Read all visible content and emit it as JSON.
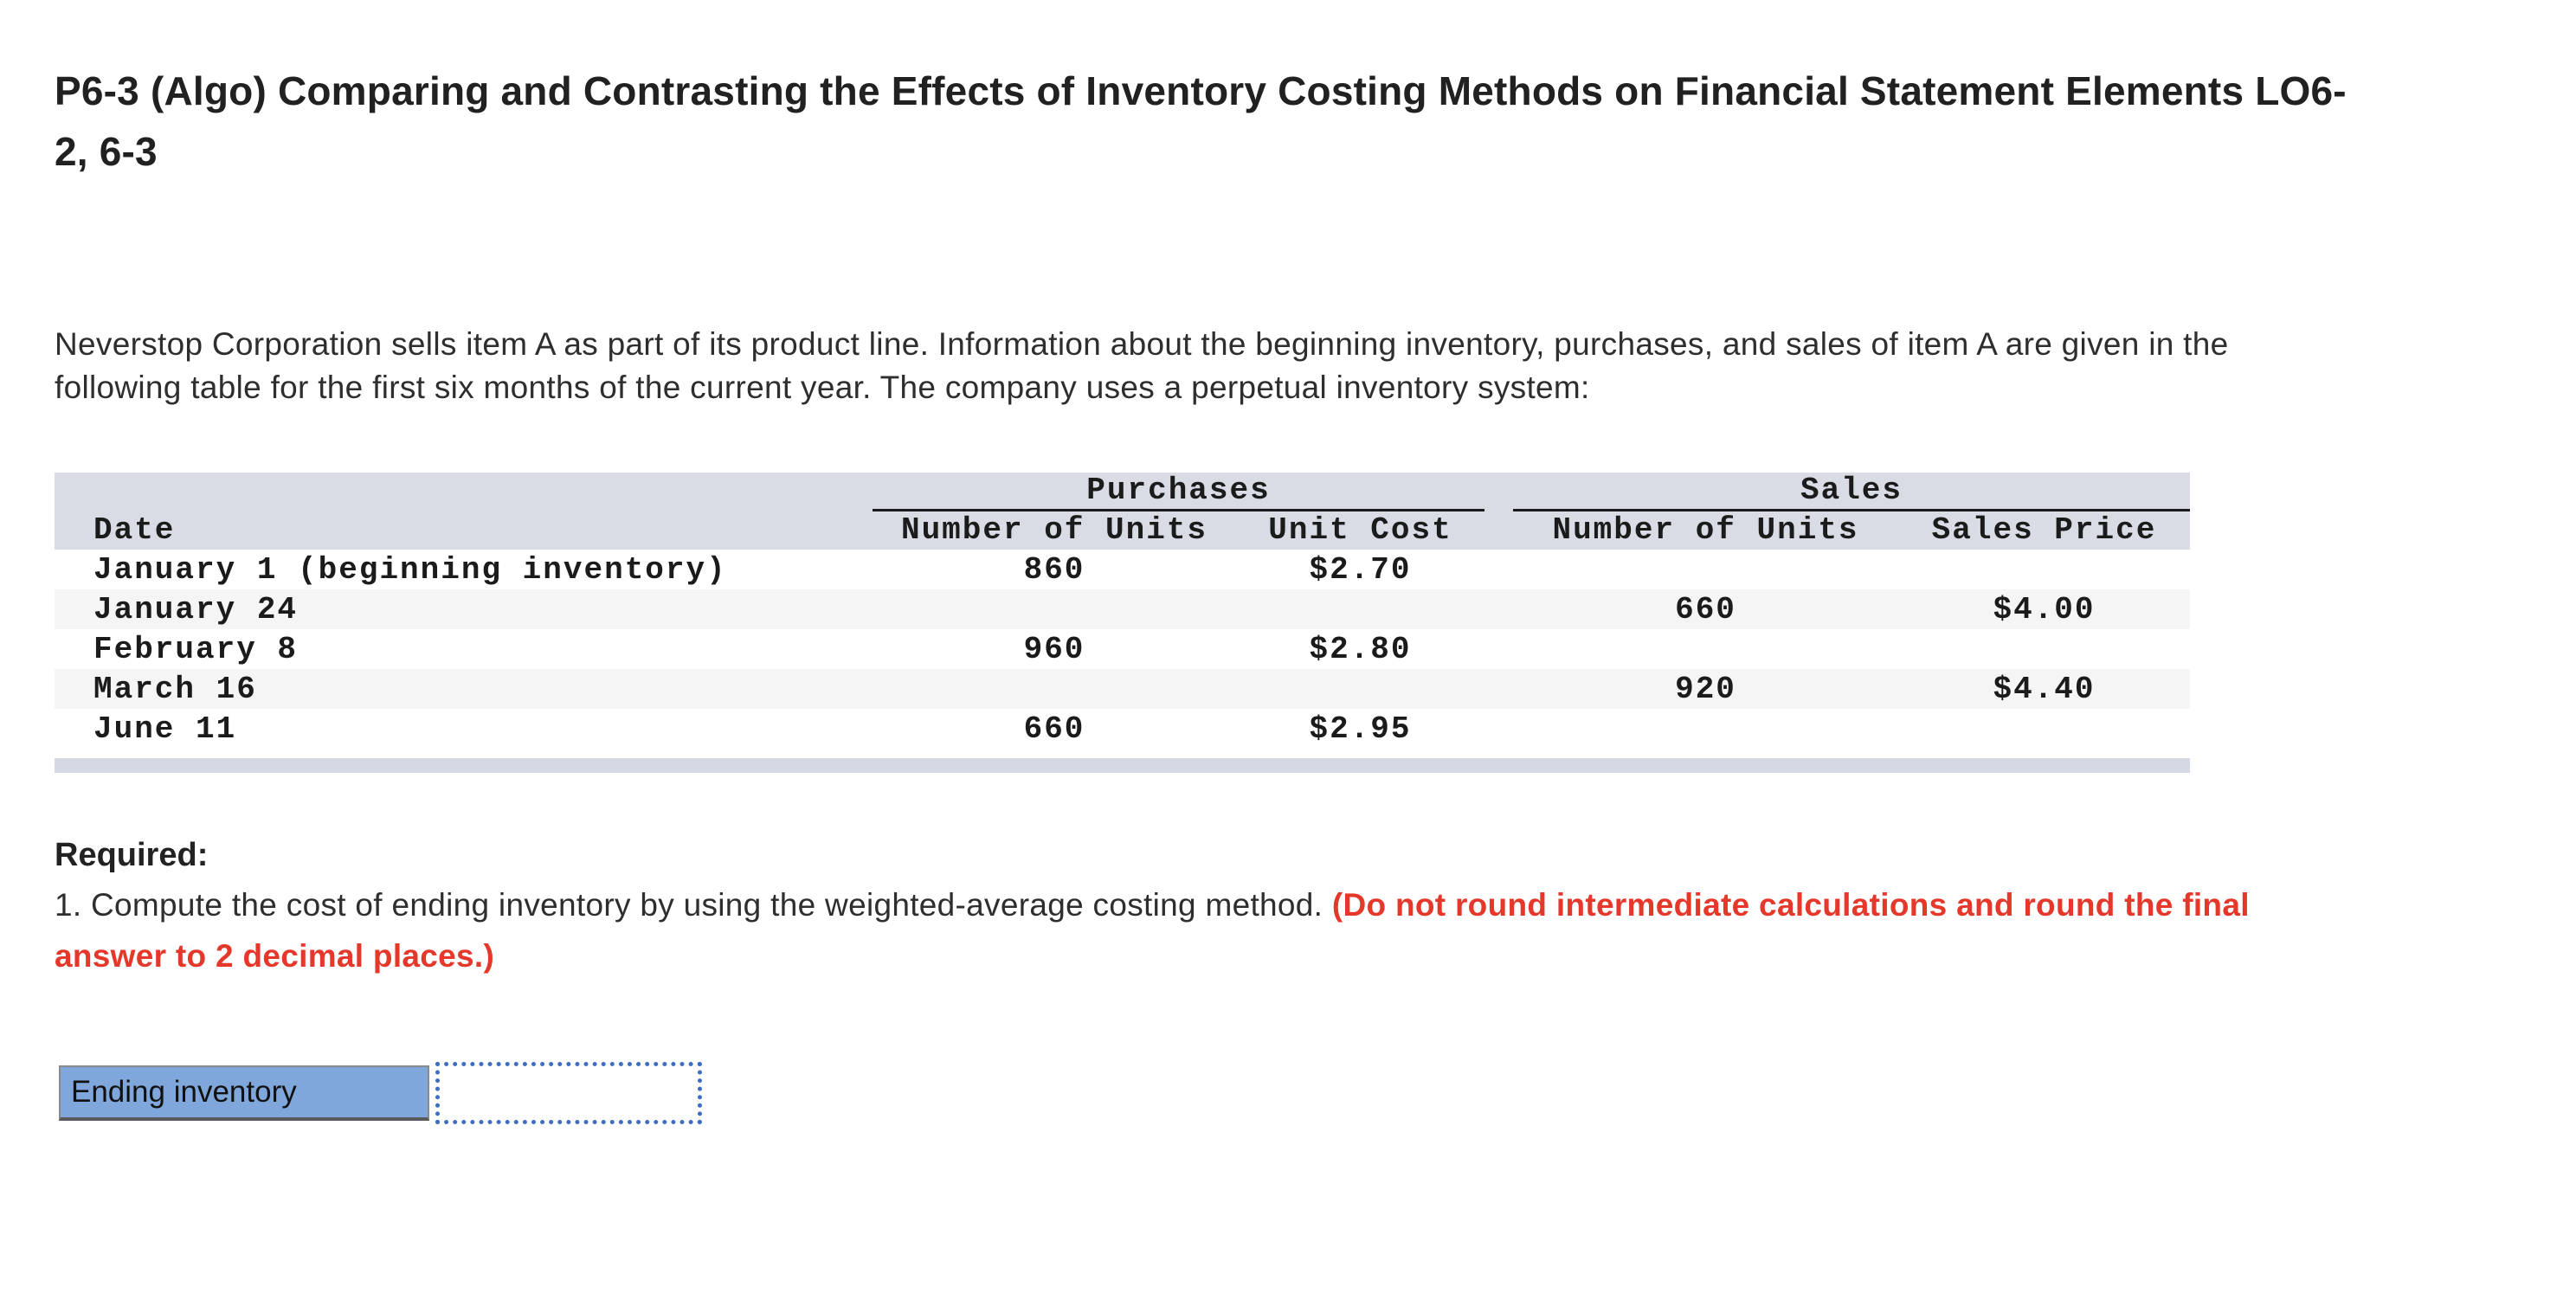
{
  "page": {
    "title": "P6-3 (Algo) Comparing and Contrasting the Effects of Inventory Costing Methods on Financial Statement Elements LO6-2, 6-3",
    "intro": "Neverstop Corporation sells item A as part of its product line. Information about the beginning inventory, purchases, and sales of item A are given in the following table for the first six months of the current year. The company uses a perpetual inventory system:"
  },
  "table": {
    "group_headers": {
      "purchases": "Purchases",
      "sales": "Sales"
    },
    "column_headers": {
      "date": "Date",
      "purchase_units": "Number of Units",
      "purchase_cost": "Unit Cost",
      "sales_units": "Number of Units",
      "sales_price": "Sales Price"
    },
    "rows": [
      {
        "date": "January 1 (beginning inventory)",
        "purchase_units": "860",
        "purchase_cost": "$2.70",
        "sales_units": "",
        "sales_price": ""
      },
      {
        "date": "January 24",
        "purchase_units": "",
        "purchase_cost": "",
        "sales_units": "660",
        "sales_price": "$4.00"
      },
      {
        "date": "February 8",
        "purchase_units": "960",
        "purchase_cost": "$2.80",
        "sales_units": "",
        "sales_price": ""
      },
      {
        "date": "March 16",
        "purchase_units": "",
        "purchase_cost": "",
        "sales_units": "920",
        "sales_price": "$4.40"
      },
      {
        "date": "June 11",
        "purchase_units": "660",
        "purchase_cost": "$2.95",
        "sales_units": "",
        "sales_price": ""
      }
    ]
  },
  "required": {
    "heading": "Required:",
    "instruction_normal": "1. Compute the cost of ending inventory by using the weighted-average costing method. ",
    "instruction_emphasis": "(Do not round intermediate calculations and round the final answer to 2 decimal places.)"
  },
  "answer": {
    "label": "Ending inventory",
    "value": ""
  },
  "colors": {
    "table_header_bg": "#d9dce5",
    "table_alt_row_bg": "#f5f5f6",
    "table_bottom_bar": "#d5d9e3",
    "answer_label_bg": "#7fa7dc",
    "answer_input_border": "#3f6dbf",
    "emphasis_red": "#e5382b"
  }
}
